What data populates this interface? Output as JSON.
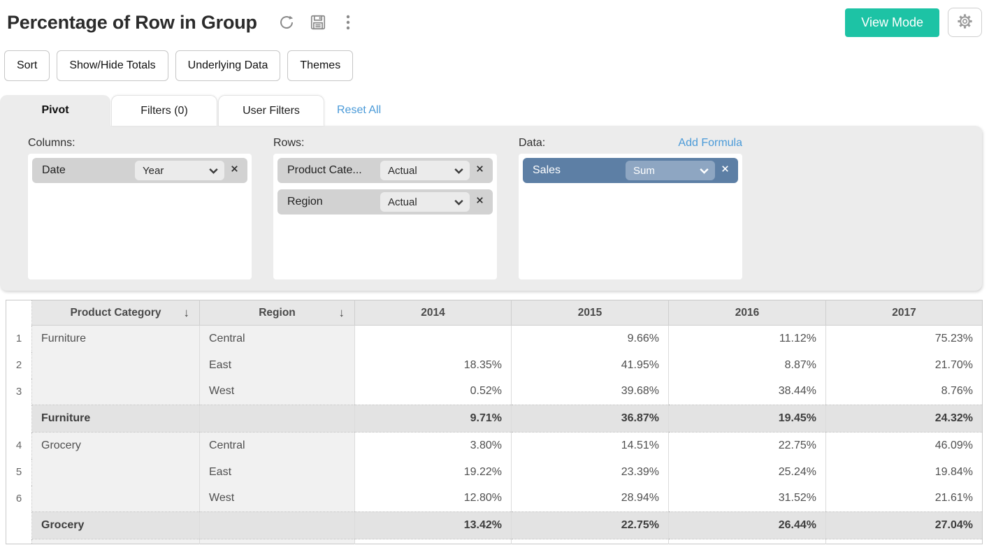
{
  "header": {
    "title": "Percentage of Row in Group",
    "view_mode_label": "View Mode"
  },
  "toolbar": {
    "buttons": [
      "Sort",
      "Show/Hide Totals",
      "Underlying Data",
      "Themes"
    ]
  },
  "tabs": {
    "items": [
      {
        "label": "Pivot",
        "active": true
      },
      {
        "label": "Filters (0)",
        "active": false
      },
      {
        "label": "User Filters",
        "active": false
      }
    ],
    "reset_all": "Reset All"
  },
  "editor": {
    "columns": {
      "label": "Columns:",
      "pills": [
        {
          "field": "Date",
          "aggregation": "Year"
        }
      ]
    },
    "rows": {
      "label": "Rows:",
      "pills": [
        {
          "field": "Product Cate...",
          "aggregation": "Actual"
        },
        {
          "field": "Region",
          "aggregation": "Actual"
        }
      ]
    },
    "data": {
      "label": "Data:",
      "add_formula": "Add Formula",
      "pills": [
        {
          "field": "Sales",
          "aggregation": "Sum",
          "accent": true
        }
      ]
    }
  },
  "table": {
    "row_header_columns": [
      {
        "label": "Product Category",
        "sort_glyph": "↓"
      },
      {
        "label": "Region",
        "sort_glyph": "↓"
      }
    ],
    "value_columns": [
      "2014",
      "2015",
      "2016",
      "2017"
    ],
    "rows": [
      {
        "num": "1",
        "category": "Furniture",
        "region": "Central",
        "values": [
          "",
          "9.66%",
          "11.12%",
          "75.23%"
        ],
        "total": false
      },
      {
        "num": "2",
        "category": "",
        "region": "East",
        "values": [
          "18.35%",
          "41.95%",
          "8.87%",
          "21.70%"
        ],
        "total": false
      },
      {
        "num": "3",
        "category": "",
        "region": "West",
        "values": [
          "0.52%",
          "39.68%",
          "38.44%",
          "8.76%"
        ],
        "total": false
      },
      {
        "num": "",
        "category": "Furniture",
        "region": "",
        "values": [
          "9.71%",
          "36.87%",
          "19.45%",
          "24.32%"
        ],
        "total": true
      },
      {
        "num": "4",
        "category": "Grocery",
        "region": "Central",
        "values": [
          "3.80%",
          "14.51%",
          "22.75%",
          "46.09%"
        ],
        "total": false
      },
      {
        "num": "5",
        "category": "",
        "region": "East",
        "values": [
          "19.22%",
          "23.39%",
          "25.24%",
          "19.84%"
        ],
        "total": false
      },
      {
        "num": "6",
        "category": "",
        "region": "West",
        "values": [
          "12.80%",
          "28.94%",
          "31.52%",
          "21.61%"
        ],
        "total": false
      },
      {
        "num": "",
        "category": "Grocery",
        "region": "",
        "values": [
          "13.42%",
          "22.75%",
          "26.44%",
          "27.04%"
        ],
        "total": true
      }
    ]
  },
  "colors": {
    "accent_teal": "#1dc3a5",
    "link_blue": "#4a9ad8",
    "data_pill_blue": "#5d7fa5",
    "data_pill_blue_light": "#8ea6c2"
  }
}
